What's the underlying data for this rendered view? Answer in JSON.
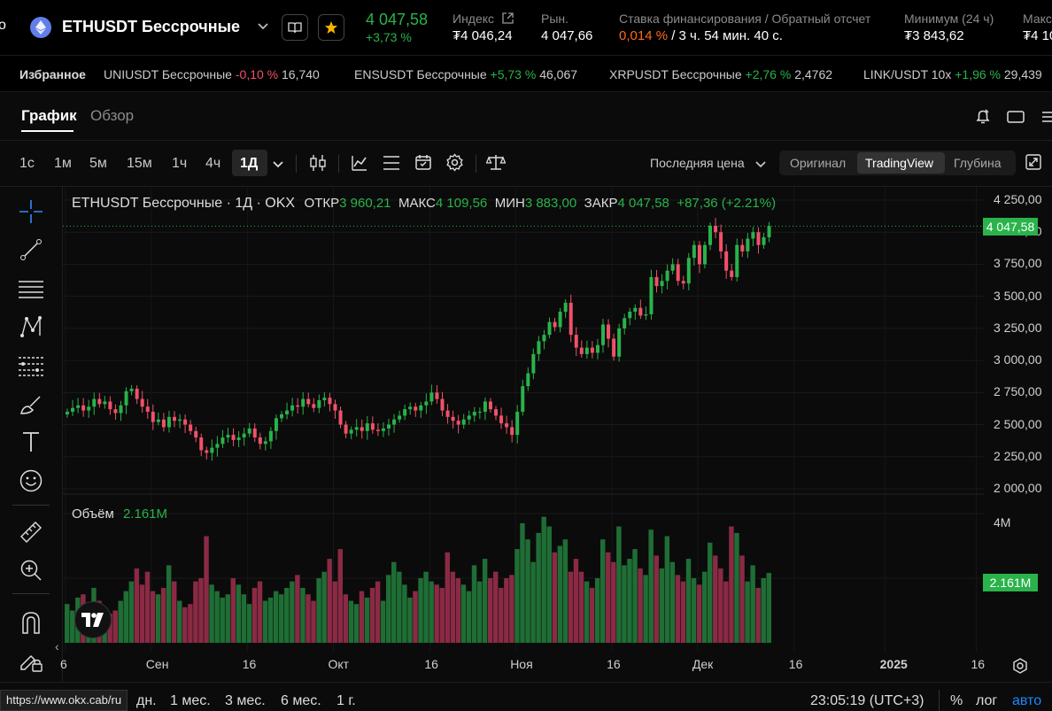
{
  "header": {
    "symbol": "ETHUSDT Бессрочные",
    "price": "4 047,58",
    "change": "+3,73 %",
    "index_label": "Индекс",
    "index_value": "₮4 046,24",
    "market_label": "Рын.",
    "market_value": "4 047,66",
    "funding_label": "Ставка финансирования / Обратный отсчет",
    "funding_rate": "0,014 %",
    "funding_countdown": " / 3 ч. 54 мин. 40 с.",
    "min_label": "Минимум (24 ч)",
    "min_value": "₮3 843,62",
    "max_label": "Макс",
    "max_value": "₮4 10"
  },
  "favorites": {
    "label": "Избранное",
    "items": [
      {
        "name": "UNIUSDT Бессрочные",
        "change": "-0,10 %",
        "price": "16,740"
      },
      {
        "name": "ENSUSDT Бессрочные",
        "change": "+5,73 %",
        "price": "46,067"
      },
      {
        "name": "XRPUSDT Бессрочные",
        "change": "+2,76 %",
        "price": "2,4762"
      },
      {
        "name": "LINK/USDT 10x",
        "change": "+1,96 %",
        "price": "29,439"
      }
    ]
  },
  "tabs": {
    "chart": "График",
    "overview": "Обзор"
  },
  "timeframes": [
    "1с",
    "1м",
    "5м",
    "15м",
    "1ч",
    "4ч",
    "1Д"
  ],
  "price_type": "Последняя цена",
  "views": {
    "original": "Оригинал",
    "tradingview": "TradingView",
    "depth": "Глубина"
  },
  "legend": {
    "title": "ETHUSDT Бессрочные · 1Д · OKX",
    "open_label": "ОТКР",
    "open": "3 960,21",
    "high_label": "МАКС",
    "high": "4 109,56",
    "low_label": "МИН",
    "low": "3 883,00",
    "close_label": "ЗАКР",
    "close": "4 047,58",
    "change": "+87,36 (+2.21%)"
  },
  "price_tag": "4 047,58",
  "volume": {
    "label": "Объём",
    "value": "2.161M",
    "tag": "2.161M",
    "axis_max": "4M"
  },
  "y_ticks": [
    "4 250,00",
    "4 000,00",
    "3 750,00",
    "3 500,00",
    "3 250,00",
    "3 000,00",
    "2 750,00",
    "2 500,00",
    "2 250,00",
    "2 000,00"
  ],
  "x_ticks": [
    "6",
    "Сен",
    "16",
    "Окт",
    "16",
    "Ноя",
    "16",
    "Дек",
    "16",
    "2025",
    "16"
  ],
  "ranges": [
    "дн.",
    "1 мес.",
    "3 мес.",
    "6 мес.",
    "1 г."
  ],
  "time": "23:05:19 (UTC+3)",
  "scale_opts": {
    "percent": "%",
    "log": "лог",
    "auto": "авто"
  },
  "status_url": "https://www.okx.cab/ru",
  "colors": {
    "up": "#29b34a",
    "down": "#f0516a",
    "accent": "#1e88ff",
    "funding": "#ff6a1a"
  },
  "chart_data": {
    "type": "candlestick",
    "title": "ETHUSDT Бессрочные · 1Д · OKX",
    "x_range": [
      "2024-08-05",
      "2024-12-16"
    ],
    "y_range": [
      2000,
      4250
    ],
    "volume_range": [
      0,
      4
    ],
    "volume_unit": "M",
    "closes": [
      2600,
      2630,
      2650,
      2610,
      2640,
      2700,
      2660,
      2680,
      2620,
      2590,
      2650,
      2760,
      2780,
      2700,
      2640,
      2600,
      2520,
      2540,
      2480,
      2560,
      2530,
      2540,
      2500,
      2450,
      2400,
      2300,
      2280,
      2320,
      2350,
      2400,
      2420,
      2380,
      2400,
      2430,
      2470,
      2400,
      2350,
      2370,
      2450,
      2550,
      2580,
      2610,
      2650,
      2640,
      2700,
      2660,
      2630,
      2690,
      2710,
      2660,
      2610,
      2500,
      2430,
      2460,
      2480,
      2450,
      2510,
      2460,
      2450,
      2470,
      2500,
      2540,
      2570,
      2620,
      2640,
      2610,
      2650,
      2680,
      2750,
      2700,
      2610,
      2560,
      2530,
      2500,
      2540,
      2570,
      2600,
      2600,
      2680,
      2620,
      2570,
      2510,
      2480,
      2420,
      2600,
      2800,
      2900,
      3050,
      3150,
      3200,
      3300,
      3260,
      3380,
      3450,
      3200,
      3100,
      3050,
      3100,
      3060,
      3120,
      3280,
      3170,
      3030,
      3250,
      3330,
      3380,
      3410,
      3350,
      3360,
      3650,
      3580,
      3620,
      3700,
      3750,
      3620,
      3600,
      3800,
      3900,
      3750,
      3900,
      4050,
      4000,
      3850,
      3700,
      3650,
      3900,
      3850,
      3950,
      4000,
      3900,
      3960,
      4047.58
    ],
    "volumes": [
      1.2,
      1.0,
      1.4,
      1.5,
      1.2,
      1.7,
      1.3,
      1.1,
      0.9,
      1.0,
      1.3,
      1.6,
      1.9,
      2.3,
      1.8,
      2.2,
      1.6,
      1.5,
      1.7,
      2.4,
      1.9,
      1.3,
      1.1,
      1.2,
      1.9,
      2.0,
      3.3,
      1.8,
      1.6,
      1.4,
      1.5,
      2.0,
      1.8,
      1.5,
      1.2,
      1.7,
      1.9,
      1.3,
      1.4,
      1.6,
      1.5,
      1.7,
      1.9,
      2.1,
      1.7,
      1.5,
      1.3,
      2.0,
      2.2,
      2.6,
      1.9,
      2.9,
      1.5,
      1.3,
      1.2,
      1.6,
      1.4,
      1.7,
      1.9,
      1.3,
      2.1,
      2.5,
      2.2,
      1.8,
      1.4,
      1.6,
      2.0,
      2.2,
      1.9,
      1.8,
      1.7,
      2.8,
      2.2,
      2.0,
      1.8,
      1.6,
      2.4,
      1.9,
      2.6,
      2.0,
      2.2,
      1.7,
      2.0,
      2.1,
      2.9,
      3.7,
      3.2,
      2.5,
      3.4,
      3.9,
      3.6,
      2.8,
      3.0,
      3.2,
      2.2,
      2.6,
      2.2,
      1.9,
      1.7,
      2.0,
      3.2,
      2.8,
      2.5,
      3.6,
      2.4,
      2.6,
      2.9,
      2.3,
      2.1,
      3.5,
      2.7,
      2.3,
      3.3,
      2.5,
      2.1,
      1.9,
      2.6,
      2.0,
      1.8,
      2.2,
      3.1,
      2.7,
      2.3,
      1.9,
      3.6,
      3.4,
      2.7,
      1.9,
      2.4,
      1.7,
      2.0,
      2.161
    ]
  }
}
